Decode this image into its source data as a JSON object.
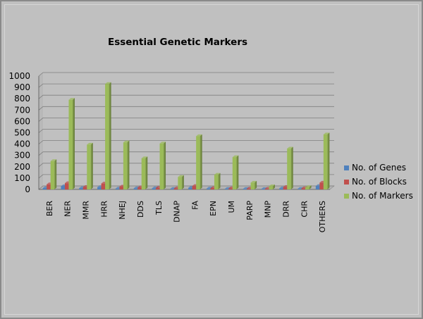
{
  "chart_data": {
    "type": "bar",
    "title": "Essential Genetic Markers",
    "categories": [
      "BER",
      "NER",
      "MMR",
      "HRR",
      "NHEJ",
      "DDS",
      "TLS",
      "DNAP",
      "FA",
      "EPN",
      "UM",
      "PARP",
      "MNP",
      "DRR",
      "CHR",
      "OTHERS"
    ],
    "series": [
      {
        "name": "No. of Genes",
        "color": "#4f81bd",
        "values": [
          12,
          28,
          12,
          20,
          8,
          10,
          10,
          5,
          15,
          8,
          5,
          5,
          3,
          10,
          5,
          30
        ]
      },
      {
        "name": "No. of Blocks",
        "color": "#c0504d",
        "values": [
          45,
          55,
          22,
          52,
          25,
          18,
          15,
          10,
          30,
          12,
          10,
          8,
          6,
          22,
          10,
          60
        ]
      },
      {
        "name": "No. of Markers",
        "color": "#9bbb59",
        "values": [
          250,
          790,
          395,
          930,
          415,
          275,
          405,
          110,
          470,
          130,
          285,
          60,
          28,
          360,
          20,
          485
        ]
      }
    ],
    "yticks": [
      0,
      100,
      200,
      300,
      400,
      500,
      600,
      700,
      800,
      900,
      1000
    ],
    "ylim": [
      0,
      1000
    ],
    "grid": true,
    "legend_position": "right"
  }
}
